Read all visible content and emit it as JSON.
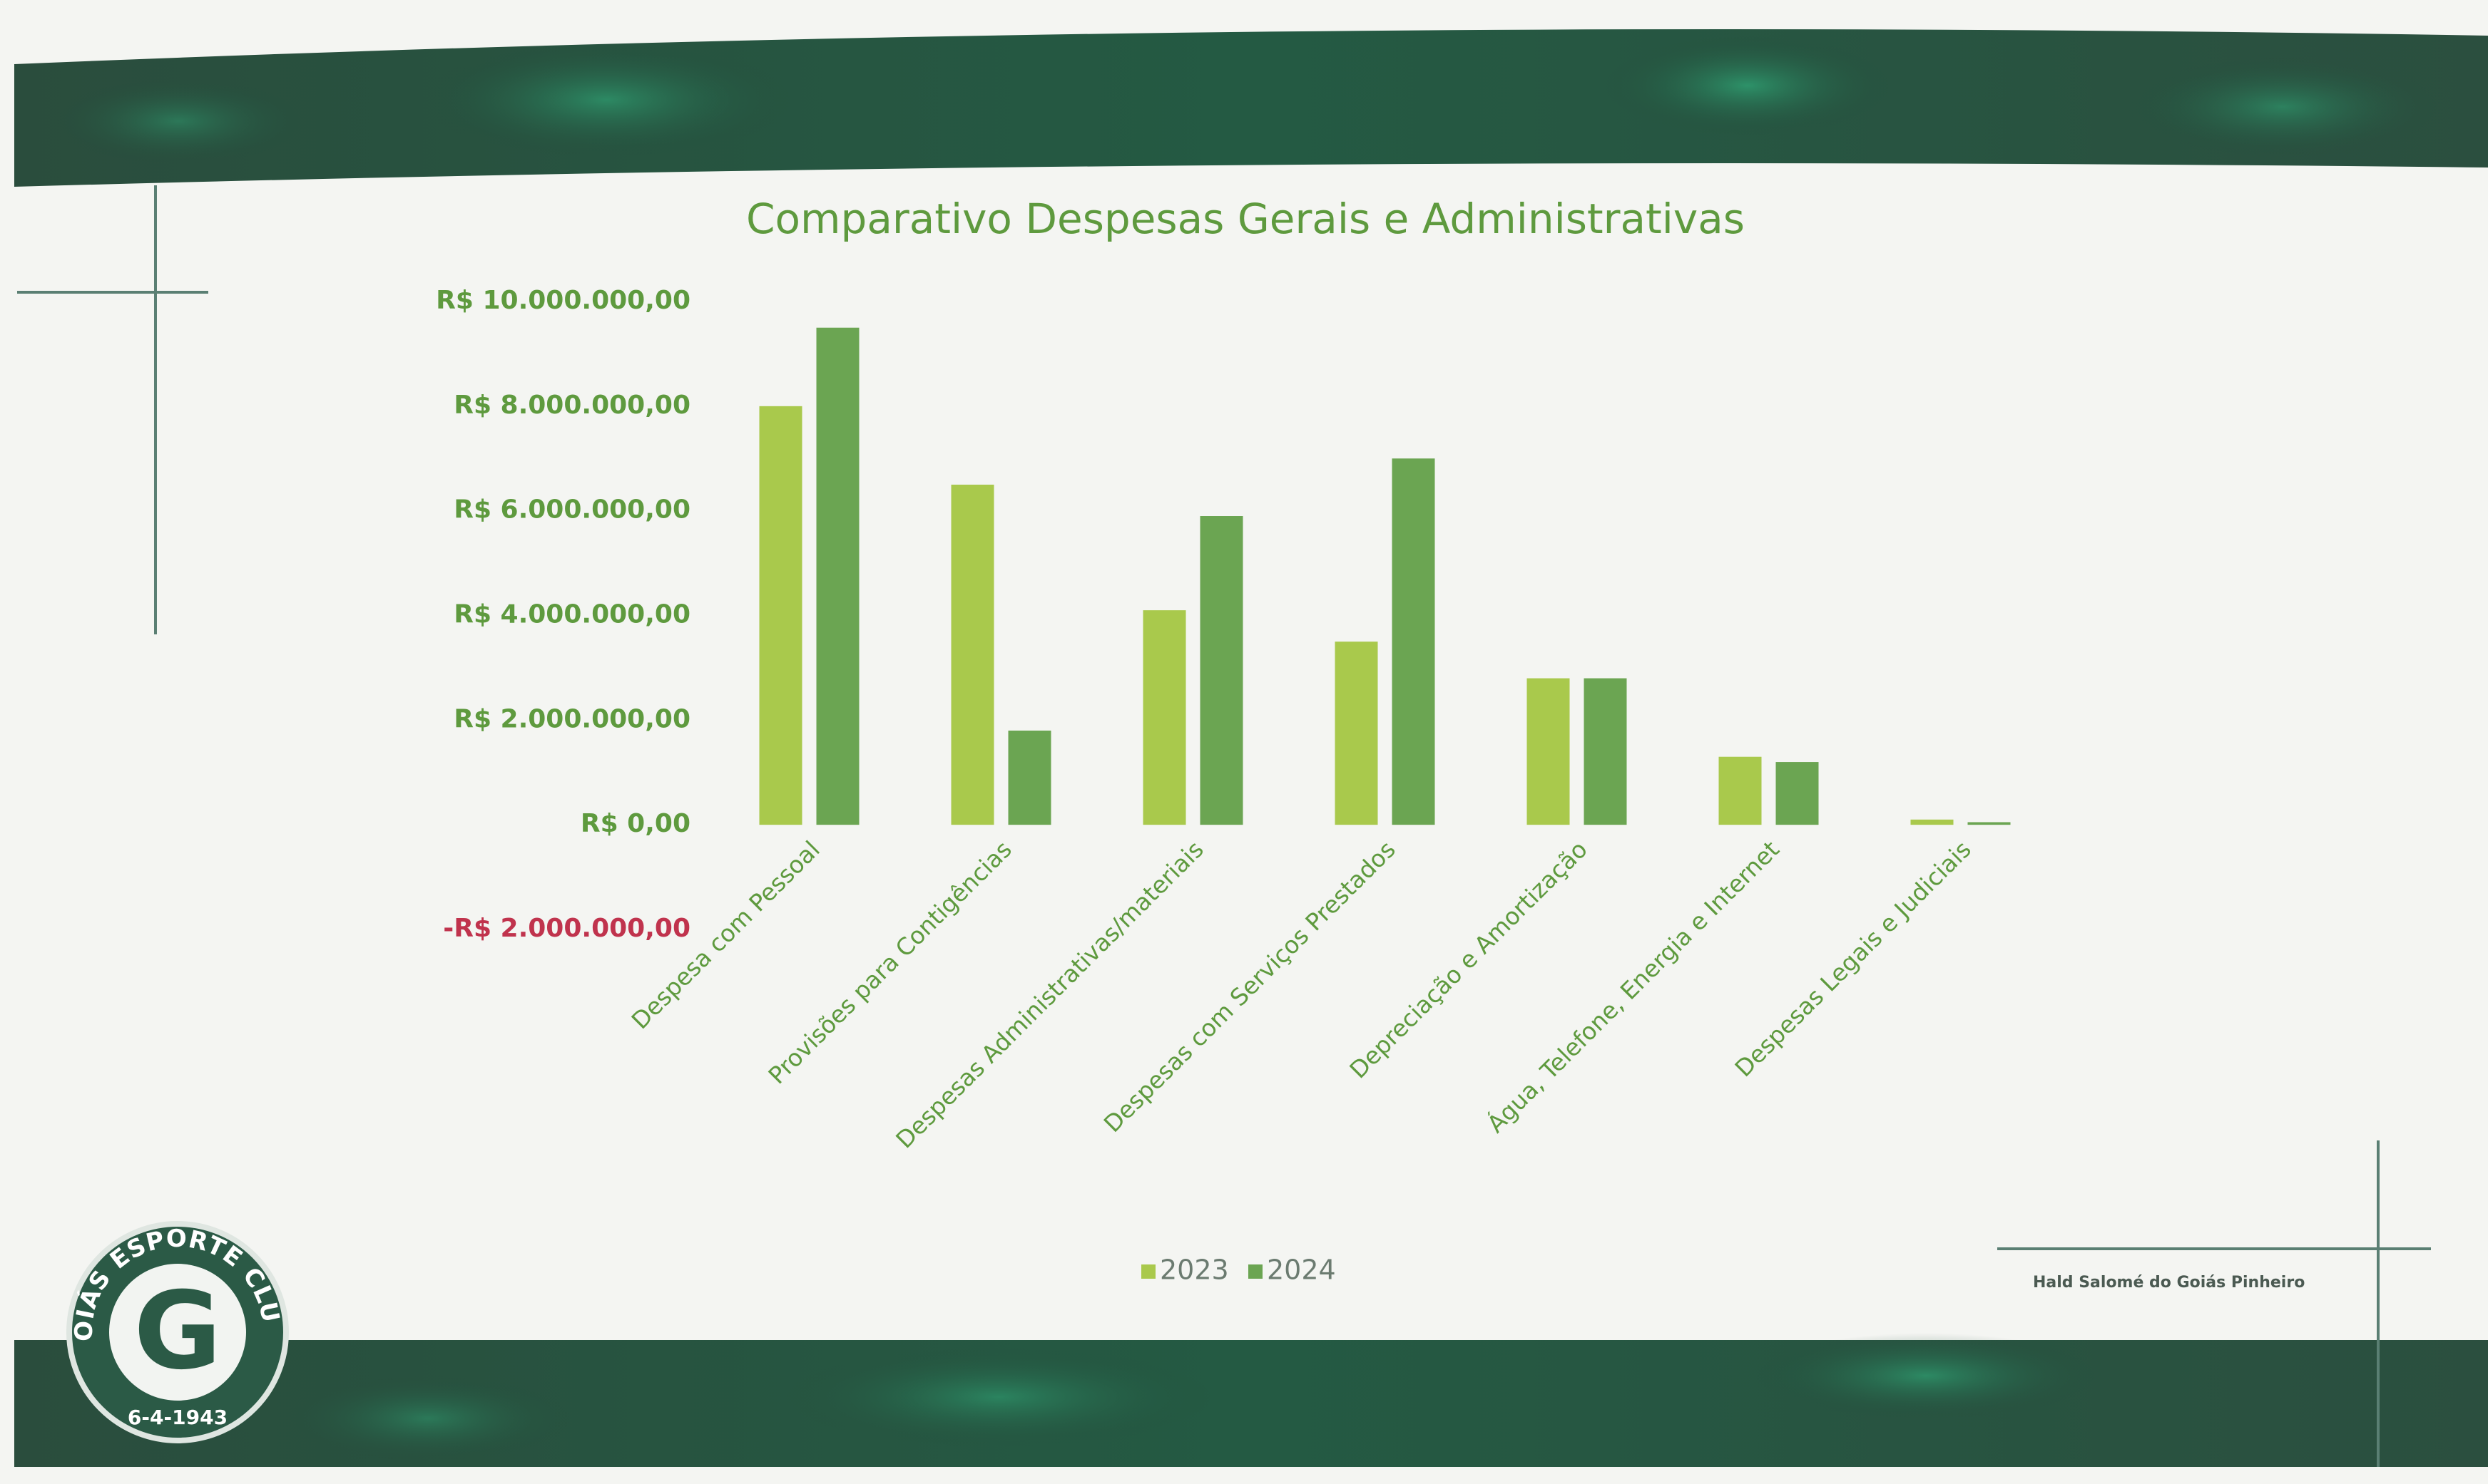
{
  "chart_data": {
    "type": "bar",
    "title": "Comparativo Despesas Gerais e Administrativas",
    "categories": [
      "Despesa com Pessoal",
      "Provisões para Contigências",
      "Despesas Administrativas/materiais",
      "Despesas com Serviços Prestados",
      "Depreciação e Amortização",
      "Água, Telefone, Energia e Internet",
      "Despesas Legais e Judiciais"
    ],
    "series": [
      {
        "name": "2023",
        "color": "#a9c94c",
        "values": [
          8000000,
          6500000,
          4100000,
          3500000,
          2800000,
          1300000,
          100000
        ]
      },
      {
        "name": "2024",
        "color": "#6ba552",
        "values": [
          9500000,
          1800000,
          5900000,
          7000000,
          2800000,
          1200000,
          50000
        ]
      }
    ],
    "ylim": [
      -2000000,
      10000000
    ],
    "yticks": [
      {
        "value": -2000000,
        "label": "-R$ 2.000.000,00"
      },
      {
        "value": 0,
        "label": "R$ 0,00"
      },
      {
        "value": 2000000,
        "label": "R$ 2.000.000,00"
      },
      {
        "value": 4000000,
        "label": "R$ 4.000.000,00"
      },
      {
        "value": 6000000,
        "label": "R$ 6.000.000,00"
      },
      {
        "value": 8000000,
        "label": "R$ 8.000.000,00"
      },
      {
        "value": 10000000,
        "label": "R$ 10.000.000,00"
      }
    ],
    "tick_color": "#5e9a3e",
    "negative_tick_color": "#c0334d",
    "grid": false,
    "legend": "bottom"
  },
  "logo": {
    "ring_text": "GOIÁS ESPORTE CLUBE",
    "letter": "G",
    "date": "6-4-1943"
  },
  "footer": {
    "signature": "Hald Salomé do Goiás Pinheiro"
  }
}
